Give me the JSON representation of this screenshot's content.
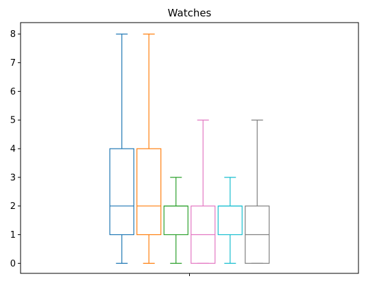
{
  "chart_data": {
    "type": "box",
    "title": "Watches",
    "xlabel": "",
    "ylabel": "",
    "ylim": [
      -0.35,
      8.4
    ],
    "yticks": [
      0,
      1,
      2,
      3,
      4,
      5,
      6,
      7,
      8
    ],
    "grid": false,
    "legend": "none",
    "series": [
      {
        "color": "#1f77b4",
        "min": 0,
        "q1": 1,
        "median": 2,
        "q3": 4,
        "max": 8
      },
      {
        "color": "#ff7f0e",
        "min": 0,
        "q1": 1,
        "median": 2,
        "q3": 4,
        "max": 8
      },
      {
        "color": "#2ca02c",
        "min": 0,
        "q1": 1,
        "median": 2,
        "q3": 2,
        "max": 3
      },
      {
        "color": "#e377c2",
        "min": 0,
        "q1": 0,
        "median": 1,
        "q3": 2,
        "max": 5
      },
      {
        "color": "#17becf",
        "min": 0,
        "q1": 1,
        "median": 2,
        "q3": 2,
        "max": 3
      },
      {
        "color": "#7f7f7f",
        "min": 0,
        "q1": 0,
        "median": 1,
        "q3": 2,
        "max": 5
      }
    ]
  }
}
